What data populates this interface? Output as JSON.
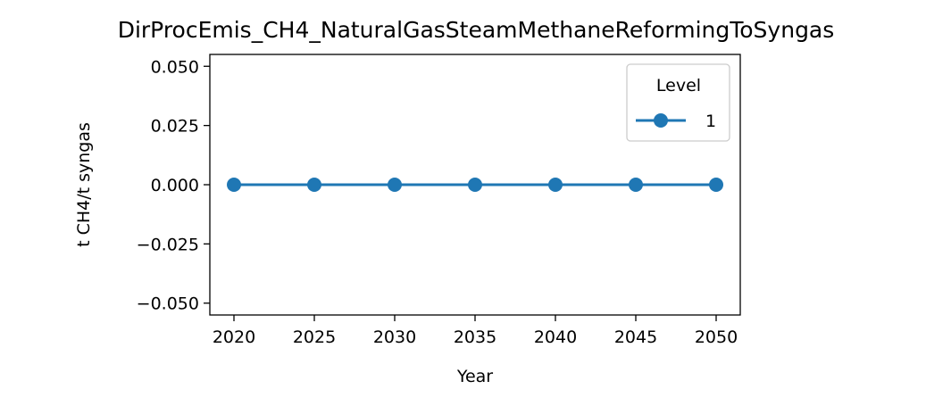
{
  "chart_data": {
    "type": "line",
    "title": "DirProcEmis_CH4_NaturalGasSteamMethaneReformingToSyngas",
    "xlabel": "Year",
    "ylabel": "t CH4/t syngas",
    "x": [
      2020,
      2025,
      2030,
      2035,
      2040,
      2045,
      2050
    ],
    "xticks": [
      "2020",
      "2025",
      "2030",
      "2035",
      "2040",
      "2045",
      "2050"
    ],
    "yticks": [
      "0.050",
      "0.025",
      "0.000",
      "−0.025",
      "−0.050"
    ],
    "ytick_values": [
      0.05,
      0.025,
      0.0,
      -0.025,
      -0.05
    ],
    "xlim": [
      2018.5,
      2051.5
    ],
    "ylim": [
      -0.055,
      0.055
    ],
    "grid": false,
    "legend": {
      "title": "Level",
      "placement": "top-right"
    },
    "series": [
      {
        "name": "1",
        "values": [
          0,
          0,
          0,
          0,
          0,
          0,
          0
        ],
        "color": "#1f77b4",
        "marker": "circle"
      }
    ]
  }
}
